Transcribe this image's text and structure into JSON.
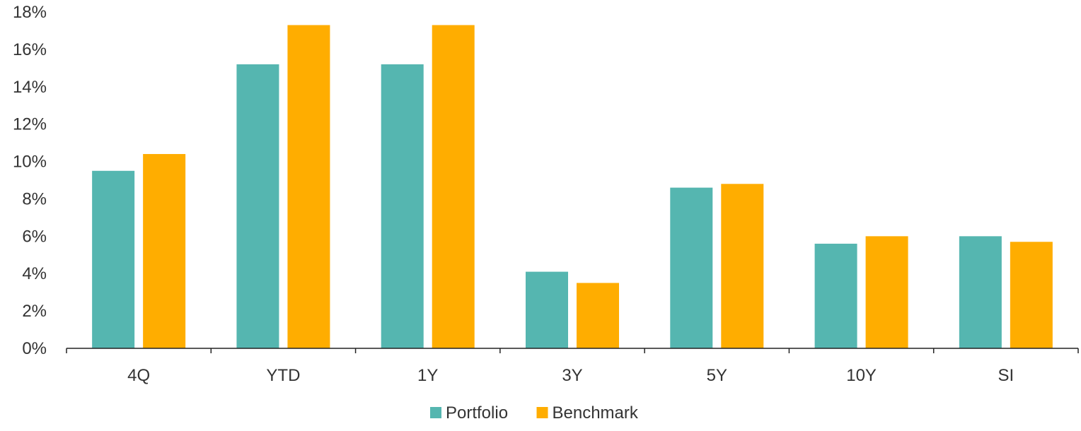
{
  "chart_data": {
    "type": "bar",
    "title": "",
    "xlabel": "",
    "ylabel": "",
    "categories": [
      "4Q",
      "YTD",
      "1Y",
      "3Y",
      "5Y",
      "10Y",
      "SI"
    ],
    "series": [
      {
        "name": "Portfolio",
        "color": "#55b6b0",
        "values": [
          9.5,
          15.2,
          15.2,
          4.1,
          8.6,
          5.6,
          6.0
        ]
      },
      {
        "name": "Benchmark",
        "color": "#ffad00",
        "values": [
          10.4,
          17.3,
          17.3,
          3.5,
          8.8,
          6.0,
          5.7
        ]
      }
    ],
    "ylim": [
      0,
      18
    ],
    "y_ticks": [
      0,
      2,
      4,
      6,
      8,
      10,
      12,
      14,
      16,
      18
    ],
    "y_tick_suffix": "%",
    "grid": false,
    "legend_position": "bottom-center"
  }
}
